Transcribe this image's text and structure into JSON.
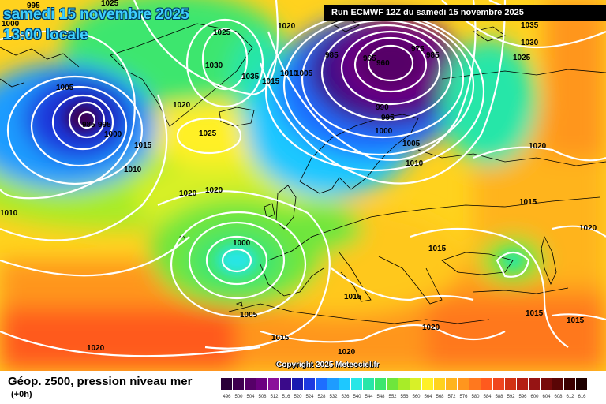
{
  "header": {
    "date_line": "samedi 15 novembre 2025",
    "time_line": "13:00 locale",
    "run_line": "Run ECMWF 12Z du samedi 15 novembre 2025"
  },
  "copyright": "Copyright 2025 Meteociel.fr",
  "legend": {
    "title": "Géop. z500, pression niveau mer",
    "subtitle": "(+0h)",
    "scale": [
      {
        "value": "496",
        "color": "#2a0038"
      },
      {
        "value": "500",
        "color": "#3f0050"
      },
      {
        "value": "504",
        "color": "#560068"
      },
      {
        "value": "508",
        "color": "#6c0080"
      },
      {
        "value": "512",
        "color": "#8a109a"
      },
      {
        "value": "516",
        "color": "#3a0a8a"
      },
      {
        "value": "520",
        "color": "#1a1ab0"
      },
      {
        "value": "524",
        "color": "#1e3ae0"
      },
      {
        "value": "528",
        "color": "#1e6eff"
      },
      {
        "value": "532",
        "color": "#1e9cff"
      },
      {
        "value": "536",
        "color": "#1ec8ff"
      },
      {
        "value": "540",
        "color": "#28e6e6"
      },
      {
        "value": "544",
        "color": "#28e6a8"
      },
      {
        "value": "548",
        "color": "#3ce66e"
      },
      {
        "value": "552",
        "color": "#6ee63c"
      },
      {
        "value": "556",
        "color": "#a8ec28"
      },
      {
        "value": "560",
        "color": "#d8f028"
      },
      {
        "value": "564",
        "color": "#fff028"
      },
      {
        "value": "568",
        "color": "#ffd21e"
      },
      {
        "value": "572",
        "color": "#ffb41e"
      },
      {
        "value": "576",
        "color": "#ff961e"
      },
      {
        "value": "580",
        "color": "#ff781e"
      },
      {
        "value": "584",
        "color": "#ff5a1e"
      },
      {
        "value": "588",
        "color": "#f0461e"
      },
      {
        "value": "592",
        "color": "#d23214"
      },
      {
        "value": "596",
        "color": "#b41e14"
      },
      {
        "value": "600",
        "color": "#961414"
      },
      {
        "value": "604",
        "color": "#780a0a"
      },
      {
        "value": "608",
        "color": "#5a0505"
      },
      {
        "value": "612",
        "color": "#3c0000"
      },
      {
        "value": "616",
        "color": "#1e0000"
      }
    ]
  },
  "isobars": [
    {
      "label": "995"
    },
    {
      "label": "1000"
    },
    {
      "label": "1025"
    },
    {
      "label": "1025"
    },
    {
      "label": "1030"
    },
    {
      "label": "1035"
    },
    {
      "label": "1015"
    },
    {
      "label": "1010"
    },
    {
      "label": "1005"
    },
    {
      "label": "1020"
    },
    {
      "label": "985"
    },
    {
      "label": "965"
    },
    {
      "label": "960"
    },
    {
      "label": "975"
    },
    {
      "label": "985"
    },
    {
      "label": "1035"
    },
    {
      "label": "1030"
    },
    {
      "label": "1025"
    },
    {
      "label": "1005"
    },
    {
      "label": "985"
    },
    {
      "label": "995"
    },
    {
      "label": "1000"
    },
    {
      "label": "1015"
    },
    {
      "label": "1010"
    },
    {
      "label": "1020"
    },
    {
      "label": "1020"
    },
    {
      "label": "1025"
    },
    {
      "label": "990"
    },
    {
      "label": "995"
    },
    {
      "label": "1000"
    },
    {
      "label": "1005"
    },
    {
      "label": "1010"
    },
    {
      "label": "1020"
    },
    {
      "label": "1020"
    },
    {
      "label": "1010"
    },
    {
      "label": "1000"
    },
    {
      "label": "1005"
    },
    {
      "label": "1015"
    },
    {
      "label": "1015"
    },
    {
      "label": "1015"
    },
    {
      "label": "1020"
    },
    {
      "label": "1015"
    },
    {
      "label": "1015"
    },
    {
      "label": "1020"
    },
    {
      "label": "1020"
    },
    {
      "label": "1020"
    },
    {
      "label": "1015"
    }
  ],
  "colors": {
    "isobar": "#ffffff",
    "coast": "#000000"
  }
}
